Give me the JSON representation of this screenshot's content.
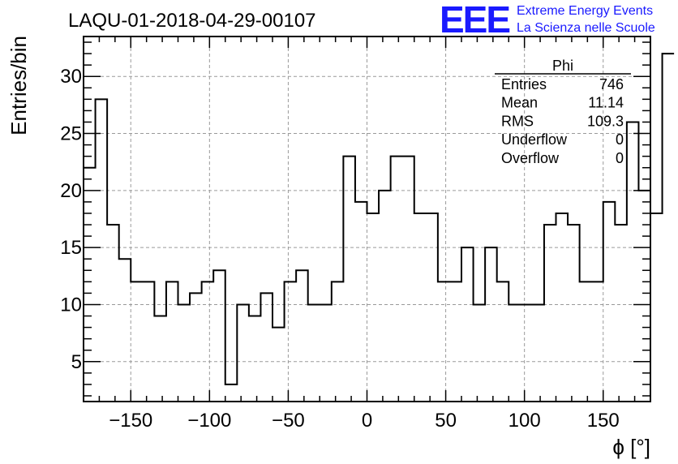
{
  "title": "LAQU-01-2018-04-29-00107",
  "logo": {
    "mark": "EEE",
    "line1": "Extreme Energy Events",
    "line2": "La Scienza nelle Scuole",
    "color": "#1a1aff"
  },
  "stats": {
    "name": "Phi",
    "rows": [
      {
        "label": "Entries",
        "value": "746"
      },
      {
        "label": "Mean",
        "value": "11.14"
      },
      {
        "label": "RMS",
        "value": "109.3"
      },
      {
        "label": "Underflow",
        "value": "0"
      },
      {
        "label": "Overflow",
        "value": "0"
      }
    ]
  },
  "chart_data": {
    "type": "bar",
    "histogram": true,
    "title": "LAQU-01-2018-04-29-00107",
    "xlabel": "ϕ [°]",
    "ylabel": "Entries/bin",
    "xlim": [
      -180,
      180
    ],
    "ylim": [
      1.5,
      33.5
    ],
    "xticks": [
      -150,
      -100,
      -50,
      0,
      50,
      100,
      150
    ],
    "yticks": [
      5,
      10,
      15,
      20,
      25,
      30
    ],
    "grid": true,
    "bin_width": 7.5,
    "bin_edges_start": -180,
    "values": [
      22,
      28,
      17,
      14,
      12,
      12,
      9,
      12,
      10,
      11,
      12,
      13,
      3,
      10,
      9,
      11,
      8,
      12,
      13,
      10,
      10,
      12,
      23,
      19,
      18,
      20,
      23,
      23,
      18,
      18,
      12,
      12,
      15,
      10,
      15,
      12,
      10,
      10,
      10,
      17,
      18,
      17,
      12,
      12,
      19,
      17,
      26,
      20,
      18,
      32
    ]
  }
}
